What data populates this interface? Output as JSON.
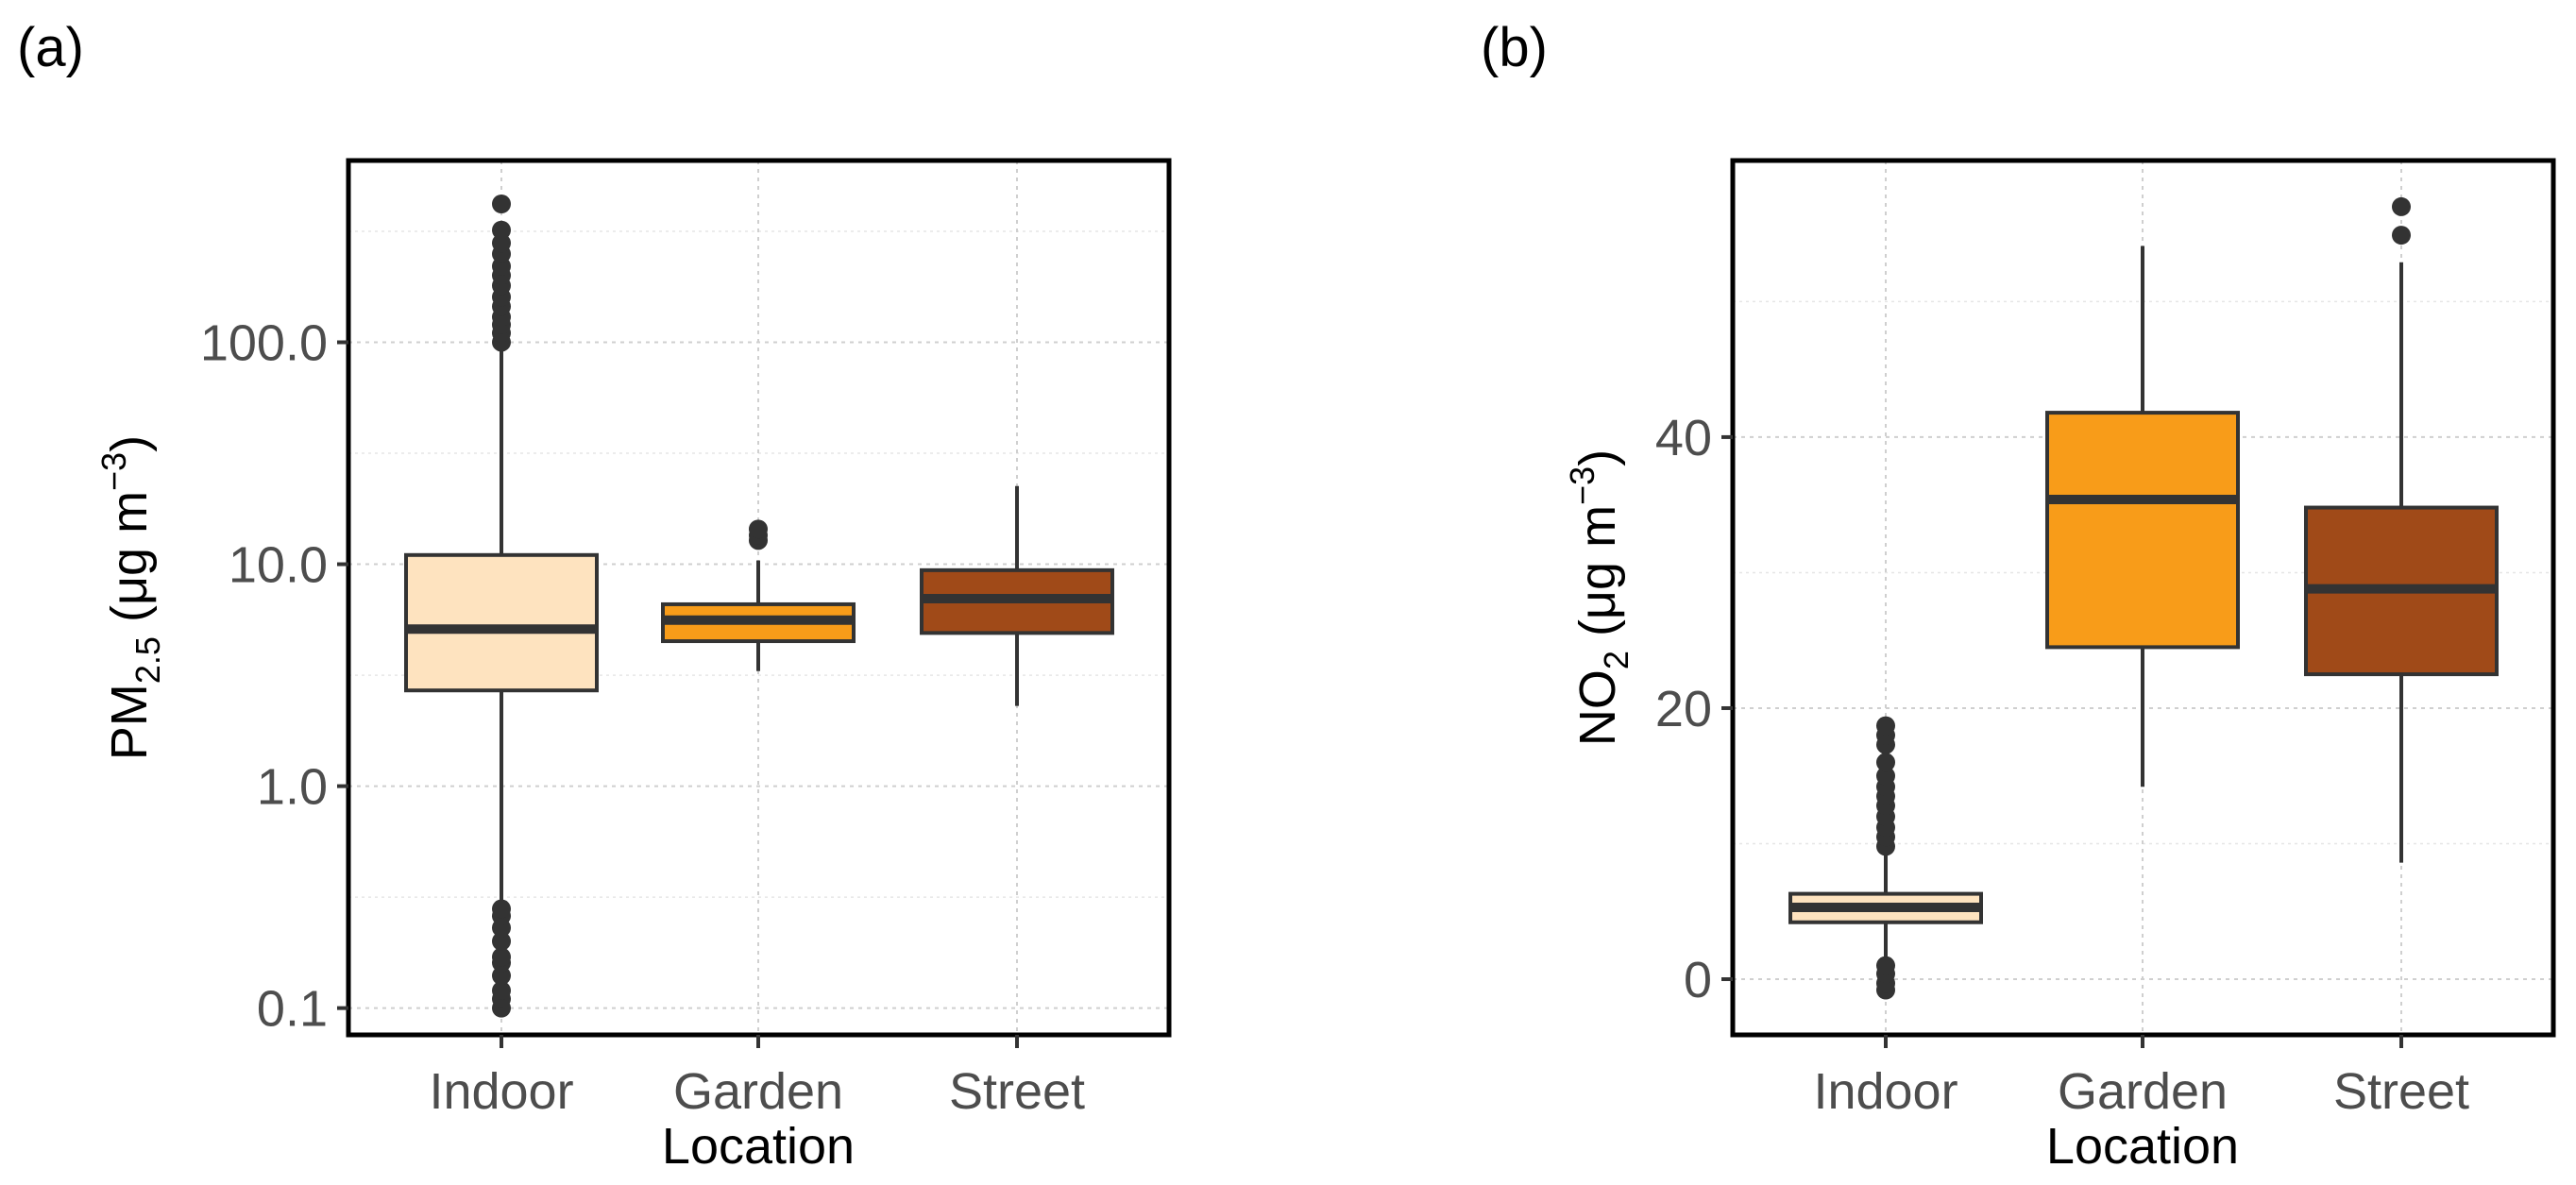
{
  "chart_data": [
    {
      "panel_label": "(a)",
      "type": "boxplot",
      "scale": "log10",
      "xlabel": "Location",
      "ylabel": {
        "main": "PM",
        "sub": "2.5",
        "unit_open": " (μg m",
        "sup": "−3",
        "unit_close": ")"
      },
      "yticks": [
        0.1,
        1.0,
        10.0,
        100.0
      ],
      "ytick_labels": [
        "0.1",
        "1.0",
        "10.0",
        "100.0"
      ],
      "ylim": [
        0.078,
        640
      ],
      "categories": [
        {
          "name": "Indoor",
          "color": "#FEE3BF",
          "whisker_low": 0.3,
          "q1": 2.7,
          "median": 5.1,
          "q3": 11.0,
          "whisker_high": 95,
          "outliers": [
            0.1,
            0.11,
            0.12,
            0.14,
            0.16,
            0.17,
            0.2,
            0.23,
            0.26,
            0.28,
            100,
            110,
            120,
            130,
            145,
            160,
            180,
            200,
            220,
            250,
            280,
            320,
            420
          ]
        },
        {
          "name": "Garden",
          "color": "#F89C19",
          "whisker_low": 3.3,
          "q1": 4.5,
          "median": 5.6,
          "q3": 6.6,
          "whisker_high": 10.4,
          "outliers": [
            12.8,
            13.5,
            14.4
          ]
        },
        {
          "name": "Street",
          "color": "#A04A18",
          "whisker_low": 2.3,
          "q1": 4.9,
          "median": 7.0,
          "q3": 9.4,
          "whisker_high": 22.5,
          "outliers": []
        }
      ]
    },
    {
      "panel_label": "(b)",
      "type": "boxplot",
      "scale": "linear",
      "xlabel": "Location",
      "ylabel": {
        "main": "NO",
        "sub": "2",
        "unit_open": " (μg  m",
        "sup": "−3",
        "unit_close": ")"
      },
      "yticks": [
        0,
        20,
        40
      ],
      "ytick_labels": [
        "0",
        "20",
        "40"
      ],
      "ylim": [
        -3.9,
        60.2
      ],
      "categories": [
        {
          "name": "Indoor",
          "color": "#FEE3BF",
          "whisker_low": 1.5,
          "q1": 4.2,
          "median": 5.3,
          "q3": 6.3,
          "whisker_high": 9.5,
          "outliers": [
            -0.8,
            -0.3,
            0.4,
            1.0,
            9.8,
            10.5,
            11.2,
            12.0,
            12.8,
            13.5,
            14.2,
            15.0,
            16.0,
            17.3,
            18.0,
            18.7
          ]
        },
        {
          "name": "Garden",
          "color": "#F89C19",
          "whisker_low": 14.2,
          "q1": 24.5,
          "median": 35.4,
          "q3": 41.8,
          "whisker_high": 54.1,
          "outliers": []
        },
        {
          "name": "Street",
          "color": "#A04A18",
          "whisker_low": 8.6,
          "q1": 22.5,
          "median": 28.8,
          "q3": 34.8,
          "whisker_high": 52.9,
          "outliers": [
            54.9,
            57.0
          ]
        }
      ]
    }
  ]
}
